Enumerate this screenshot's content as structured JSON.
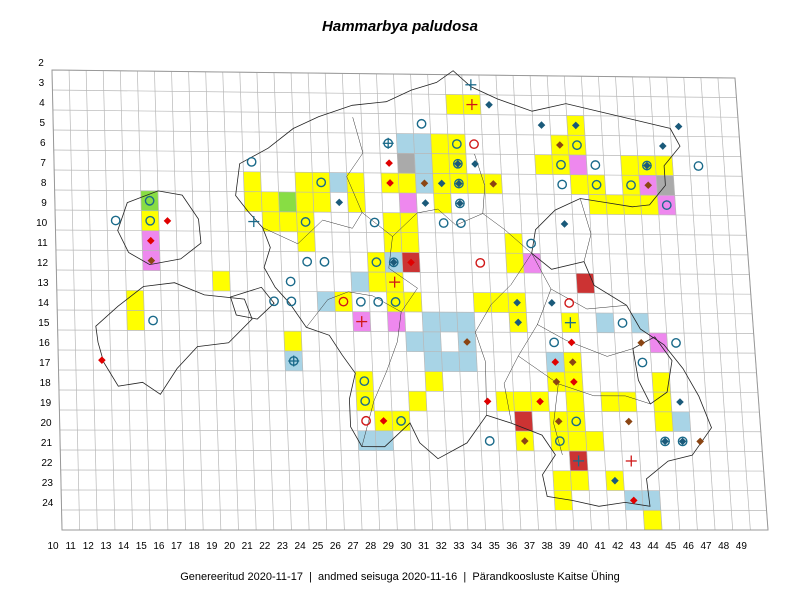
{
  "title": "Hammarbya paludosa",
  "footer": {
    "generated_label": "Genereeritud",
    "generated_date": "2020-11-17",
    "data_label": "andmed seisuga",
    "data_date": "2020-11-16",
    "organization": "Pärandkoosluste Kaitse Ühing",
    "separator": "|"
  },
  "grid": {
    "columns": [
      10,
      11,
      12,
      13,
      14,
      15,
      16,
      17,
      18,
      19,
      20,
      21,
      22,
      23,
      24,
      25,
      26,
      27,
      28,
      29,
      30,
      31,
      32,
      33,
      34,
      35,
      36,
      37,
      38,
      39,
      40,
      41,
      42,
      43,
      44,
      45,
      46,
      47,
      48,
      49
    ],
    "rows": [
      2,
      3,
      4,
      5,
      6,
      7,
      8,
      9,
      10,
      11,
      12,
      13,
      14,
      15,
      16,
      17,
      18,
      19,
      20,
      21,
      22,
      23,
      24
    ]
  },
  "colors": {
    "yellow": "#ffff00",
    "blue": "#a8d4e6",
    "pink": "#ee88ee",
    "green": "#88dd44",
    "gray": "#aaaaaa",
    "red": "#cc3333",
    "circle": "#1a6a8a",
    "cross": "#d01818",
    "diamond_brown": "#8b4513",
    "diamond_red": "#e00000",
    "diamond_blue": "#1a5a7a"
  },
  "cells": [
    {
      "c": 33,
      "r": 4,
      "f": "yellow"
    },
    {
      "c": 34,
      "r": 4,
      "f": "yellow"
    },
    {
      "c": 40,
      "r": 5,
      "f": "yellow"
    },
    {
      "c": 30,
      "r": 6,
      "f": "blue"
    },
    {
      "c": 31,
      "r": 6,
      "f": "blue"
    },
    {
      "c": 32,
      "r": 6,
      "f": "yellow"
    },
    {
      "c": 33,
      "r": 6,
      "f": "yellow"
    },
    {
      "c": 39,
      "r": 6,
      "f": "yellow"
    },
    {
      "c": 40,
      "r": 6,
      "f": "yellow"
    },
    {
      "c": 30,
      "r": 7,
      "f": "gray"
    },
    {
      "c": 31,
      "r": 7,
      "f": "blue"
    },
    {
      "c": 32,
      "r": 7,
      "f": "yellow"
    },
    {
      "c": 33,
      "r": 7,
      "f": "yellow"
    },
    {
      "c": 38,
      "r": 7,
      "f": "yellow"
    },
    {
      "c": 39,
      "r": 7,
      "f": "yellow"
    },
    {
      "c": 40,
      "r": 7,
      "f": "pink"
    },
    {
      "c": 43,
      "r": 7,
      "f": "yellow"
    },
    {
      "c": 44,
      "r": 7,
      "f": "yellow"
    },
    {
      "c": 45,
      "r": 7,
      "f": "yellow"
    },
    {
      "c": 21,
      "r": 8,
      "f": "yellow"
    },
    {
      "c": 24,
      "r": 8,
      "f": "yellow"
    },
    {
      "c": 25,
      "r": 8,
      "f": "yellow"
    },
    {
      "c": 26,
      "r": 8,
      "f": "blue"
    },
    {
      "c": 27,
      "r": 8,
      "f": "yellow"
    },
    {
      "c": 29,
      "r": 8,
      "f": "yellow"
    },
    {
      "c": 30,
      "r": 8,
      "f": "yellow"
    },
    {
      "c": 31,
      "r": 8,
      "f": "blue"
    },
    {
      "c": 32,
      "r": 8,
      "f": "yellow"
    },
    {
      "c": 33,
      "r": 8,
      "f": "yellow"
    },
    {
      "c": 34,
      "r": 8,
      "f": "yellow"
    },
    {
      "c": 35,
      "r": 8,
      "f": "yellow"
    },
    {
      "c": 40,
      "r": 8,
      "f": "yellow"
    },
    {
      "c": 41,
      "r": 8,
      "f": "yellow"
    },
    {
      "c": 43,
      "r": 8,
      "f": "yellow"
    },
    {
      "c": 44,
      "r": 8,
      "f": "pink"
    },
    {
      "c": 45,
      "r": 8,
      "f": "gray"
    },
    {
      "c": 15,
      "r": 9,
      "f": "green"
    },
    {
      "c": 21,
      "r": 9,
      "f": "yellow"
    },
    {
      "c": 22,
      "r": 9,
      "f": "yellow"
    },
    {
      "c": 23,
      "r": 9,
      "f": "green"
    },
    {
      "c": 24,
      "r": 9,
      "f": "yellow"
    },
    {
      "c": 25,
      "r": 9,
      "f": "yellow"
    },
    {
      "c": 27,
      "r": 9,
      "f": "yellow"
    },
    {
      "c": 30,
      "r": 9,
      "f": "pink"
    },
    {
      "c": 32,
      "r": 9,
      "f": "yellow"
    },
    {
      "c": 41,
      "r": 9,
      "f": "yellow"
    },
    {
      "c": 42,
      "r": 9,
      "f": "yellow"
    },
    {
      "c": 43,
      "r": 9,
      "f": "yellow"
    },
    {
      "c": 44,
      "r": 9,
      "f": "yellow"
    },
    {
      "c": 45,
      "r": 9,
      "f": "pink"
    },
    {
      "c": 15,
      "r": 10,
      "f": "yellow"
    },
    {
      "c": 22,
      "r": 10,
      "f": "yellow"
    },
    {
      "c": 23,
      "r": 10,
      "f": "yellow"
    },
    {
      "c": 24,
      "r": 10,
      "f": "yellow"
    },
    {
      "c": 29,
      "r": 10,
      "f": "yellow"
    },
    {
      "c": 30,
      "r": 10,
      "f": "yellow"
    },
    {
      "c": 15,
      "r": 11,
      "f": "pink"
    },
    {
      "c": 24,
      "r": 11,
      "f": "yellow"
    },
    {
      "c": 29,
      "r": 11,
      "f": "yellow"
    },
    {
      "c": 30,
      "r": 11,
      "f": "yellow"
    },
    {
      "c": 36,
      "r": 11,
      "f": "yellow"
    },
    {
      "c": 15,
      "r": 12,
      "f": "pink"
    },
    {
      "c": 28,
      "r": 12,
      "f": "yellow"
    },
    {
      "c": 29,
      "r": 12,
      "f": "blue"
    },
    {
      "c": 30,
      "r": 12,
      "f": "red"
    },
    {
      "c": 36,
      "r": 12,
      "f": "yellow"
    },
    {
      "c": 37,
      "r": 12,
      "f": "pink"
    },
    {
      "c": 19,
      "r": 13,
      "f": "yellow"
    },
    {
      "c": 27,
      "r": 13,
      "f": "blue"
    },
    {
      "c": 28,
      "r": 13,
      "f": "yellow"
    },
    {
      "c": 29,
      "r": 13,
      "f": "yellow"
    },
    {
      "c": 40,
      "r": 13,
      "f": "red"
    },
    {
      "c": 14,
      "r": 14,
      "f": "yellow"
    },
    {
      "c": 25,
      "r": 14,
      "f": "blue"
    },
    {
      "c": 26,
      "r": 14,
      "f": "yellow"
    },
    {
      "c": 29,
      "r": 14,
      "f": "yellow"
    },
    {
      "c": 30,
      "r": 14,
      "f": "yellow"
    },
    {
      "c": 34,
      "r": 14,
      "f": "yellow"
    },
    {
      "c": 35,
      "r": 14,
      "f": "yellow"
    },
    {
      "c": 36,
      "r": 14,
      "f": "yellow"
    },
    {
      "c": 14,
      "r": 15,
      "f": "yellow"
    },
    {
      "c": 27,
      "r": 15,
      "f": "pink"
    },
    {
      "c": 29,
      "r": 15,
      "f": "pink"
    },
    {
      "c": 31,
      "r": 15,
      "f": "blue"
    },
    {
      "c": 32,
      "r": 15,
      "f": "blue"
    },
    {
      "c": 33,
      "r": 15,
      "f": "blue"
    },
    {
      "c": 36,
      "r": 15,
      "f": "yellow"
    },
    {
      "c": 39,
      "r": 15,
      "f": "yellow"
    },
    {
      "c": 41,
      "r": 15,
      "f": "blue"
    },
    {
      "c": 43,
      "r": 15,
      "f": "blue"
    },
    {
      "c": 23,
      "r": 16,
      "f": "yellow"
    },
    {
      "c": 30,
      "r": 16,
      "f": "blue"
    },
    {
      "c": 31,
      "r": 16,
      "f": "blue"
    },
    {
      "c": 33,
      "r": 16,
      "f": "blue"
    },
    {
      "c": 44,
      "r": 16,
      "f": "pink"
    },
    {
      "c": 23,
      "r": 17,
      "f": "blue"
    },
    {
      "c": 31,
      "r": 17,
      "f": "blue"
    },
    {
      "c": 32,
      "r": 17,
      "f": "blue"
    },
    {
      "c": 33,
      "r": 17,
      "f": "blue"
    },
    {
      "c": 38,
      "r": 17,
      "f": "blue"
    },
    {
      "c": 39,
      "r": 17,
      "f": "yellow"
    },
    {
      "c": 27,
      "r": 18,
      "f": "yellow"
    },
    {
      "c": 31,
      "r": 18,
      "f": "yellow"
    },
    {
      "c": 38,
      "r": 18,
      "f": "yellow"
    },
    {
      "c": 39,
      "r": 18,
      "f": "yellow"
    },
    {
      "c": 44,
      "r": 18,
      "f": "yellow"
    },
    {
      "c": 27,
      "r": 19,
      "f": "yellow"
    },
    {
      "c": 30,
      "r": 19,
      "f": "yellow"
    },
    {
      "c": 35,
      "r": 19,
      "f": "yellow"
    },
    {
      "c": 36,
      "r": 19,
      "f": "yellow"
    },
    {
      "c": 37,
      "r": 19,
      "f": "yellow"
    },
    {
      "c": 39,
      "r": 19,
      "f": "yellow"
    },
    {
      "c": 41,
      "r": 19,
      "f": "yellow"
    },
    {
      "c": 42,
      "r": 19,
      "f": "yellow"
    },
    {
      "c": 44,
      "r": 19,
      "f": "yellow"
    },
    {
      "c": 28,
      "r": 20,
      "f": "yellow"
    },
    {
      "c": 29,
      "r": 20,
      "f": "yellow"
    },
    {
      "c": 36,
      "r": 20,
      "f": "red"
    },
    {
      "c": 38,
      "r": 20,
      "f": "yellow"
    },
    {
      "c": 39,
      "r": 20,
      "f": "yellow"
    },
    {
      "c": 44,
      "r": 20,
      "f": "yellow"
    },
    {
      "c": 45,
      "r": 20,
      "f": "blue"
    },
    {
      "c": 27,
      "r": 21,
      "f": "blue"
    },
    {
      "c": 28,
      "r": 21,
      "f": "blue"
    },
    {
      "c": 36,
      "r": 21,
      "f": "yellow"
    },
    {
      "c": 38,
      "r": 21,
      "f": "yellow"
    },
    {
      "c": 39,
      "r": 21,
      "f": "yellow"
    },
    {
      "c": 40,
      "r": 21,
      "f": "yellow"
    },
    {
      "c": 39,
      "r": 22,
      "f": "red"
    },
    {
      "c": 38,
      "r": 23,
      "f": "yellow"
    },
    {
      "c": 39,
      "r": 23,
      "f": "yellow"
    },
    {
      "c": 41,
      "r": 23,
      "f": "yellow"
    },
    {
      "c": 38,
      "r": 24,
      "f": "yellow"
    },
    {
      "c": 42,
      "r": 24,
      "f": "blue"
    },
    {
      "c": 43,
      "r": 24,
      "f": "blue"
    },
    {
      "c": 43,
      "r": 25,
      "f": "yellow"
    }
  ],
  "markers": [
    {
      "c": 34,
      "r": 3,
      "t": "cross",
      "color": "circle"
    },
    {
      "c": 34,
      "r": 4,
      "t": "cross",
      "color": "cross"
    },
    {
      "c": 35,
      "r": 4,
      "t": "diamond",
      "color": "diamond_blue"
    },
    {
      "c": 40,
      "r": 5,
      "t": "diamond",
      "color": "diamond_blue"
    },
    {
      "c": 31,
      "r": 5,
      "t": "circle",
      "color": "circle"
    },
    {
      "c": 38,
      "r": 5,
      "t": "diamond",
      "color": "diamond_blue"
    },
    {
      "c": 46,
      "r": 5,
      "t": "diamond",
      "color": "diamond_blue"
    },
    {
      "c": 45,
      "r": 6,
      "t": "diamond",
      "color": "diamond_blue"
    },
    {
      "c": 33,
      "r": 6,
      "t": "circle",
      "color": "circle"
    },
    {
      "c": 34,
      "r": 6,
      "t": "circle",
      "color": "cross"
    },
    {
      "c": 39,
      "r": 6,
      "t": "diamond",
      "color": "diamond_brown"
    },
    {
      "c": 40,
      "r": 6,
      "t": "circle",
      "color": "circle"
    },
    {
      "c": 29,
      "r": 6,
      "t": "circle",
      "color": "circle"
    },
    {
      "c": 29,
      "r": 6,
      "t": "cross",
      "color": "circle"
    },
    {
      "c": 34,
      "r": 7,
      "t": "diamond",
      "color": "diamond_blue"
    },
    {
      "c": 33,
      "r": 7,
      "t": "circle",
      "color": "circle"
    },
    {
      "c": 33,
      "r": 7,
      "t": "diamond",
      "color": "diamond_blue"
    },
    {
      "c": 39,
      "r": 7,
      "t": "circle",
      "color": "circle"
    },
    {
      "c": 41,
      "r": 7,
      "t": "circle",
      "color": "circle"
    },
    {
      "c": 44,
      "r": 7,
      "t": "circle",
      "color": "circle"
    },
    {
      "c": 44,
      "r": 7,
      "t": "diamond",
      "color": "diamond_blue"
    },
    {
      "c": 47,
      "r": 7,
      "t": "circle",
      "color": "circle"
    },
    {
      "c": 21,
      "r": 7,
      "t": "circle",
      "color": "circle"
    },
    {
      "c": 29,
      "r": 7,
      "t": "diamond",
      "color": "diamond_red"
    },
    {
      "c": 25,
      "r": 8,
      "t": "circle",
      "color": "circle"
    },
    {
      "c": 29,
      "r": 8,
      "t": "diamond",
      "color": "diamond_red"
    },
    {
      "c": 31,
      "r": 8,
      "t": "diamond",
      "color": "diamond_brown"
    },
    {
      "c": 32,
      "r": 8,
      "t": "diamond",
      "color": "diamond_blue"
    },
    {
      "c": 33,
      "r": 8,
      "t": "circle",
      "color": "circle"
    },
    {
      "c": 33,
      "r": 8,
      "t": "diamond",
      "color": "diamond_blue"
    },
    {
      "c": 35,
      "r": 8,
      "t": "diamond",
      "color": "diamond_brown"
    },
    {
      "c": 39,
      "r": 8,
      "t": "circle",
      "color": "circle"
    },
    {
      "c": 41,
      "r": 8,
      "t": "circle",
      "color": "circle"
    },
    {
      "c": 43,
      "r": 8,
      "t": "circle",
      "color": "circle"
    },
    {
      "c": 44,
      "r": 8,
      "t": "diamond",
      "color": "diamond_brown"
    },
    {
      "c": 45,
      "r": 9,
      "t": "circle",
      "color": "circle"
    },
    {
      "c": 15,
      "r": 9,
      "t": "circle",
      "color": "circle"
    },
    {
      "c": 26,
      "r": 9,
      "t": "diamond",
      "color": "diamond_blue"
    },
    {
      "c": 31,
      "r": 9,
      "t": "diamond",
      "color": "diamond_blue"
    },
    {
      "c": 33,
      "r": 9,
      "t": "circle",
      "color": "circle"
    },
    {
      "c": 33,
      "r": 9,
      "t": "diamond",
      "color": "diamond_blue"
    },
    {
      "c": 13,
      "r": 10,
      "t": "circle",
      "color": "circle"
    },
    {
      "c": 15,
      "r": 10,
      "t": "circle",
      "color": "circle"
    },
    {
      "c": 16,
      "r": 10,
      "t": "diamond",
      "color": "diamond_red"
    },
    {
      "c": 21,
      "r": 10,
      "t": "cross",
      "color": "circle"
    },
    {
      "c": 24,
      "r": 10,
      "t": "circle",
      "color": "circle"
    },
    {
      "c": 28,
      "r": 10,
      "t": "circle",
      "color": "circle"
    },
    {
      "c": 32,
      "r": 10,
      "t": "circle",
      "color": "circle"
    },
    {
      "c": 33,
      "r": 10,
      "t": "circle",
      "color": "circle"
    },
    {
      "c": 39,
      "r": 10,
      "t": "diamond",
      "color": "diamond_blue"
    },
    {
      "c": 15,
      "r": 11,
      "t": "diamond",
      "color": "diamond_red"
    },
    {
      "c": 37,
      "r": 11,
      "t": "circle",
      "color": "circle"
    },
    {
      "c": 15,
      "r": 12,
      "t": "diamond",
      "color": "diamond_brown"
    },
    {
      "c": 24,
      "r": 12,
      "t": "circle",
      "color": "circle"
    },
    {
      "c": 25,
      "r": 12,
      "t": "circle",
      "color": "circle"
    },
    {
      "c": 28,
      "r": 12,
      "t": "circle",
      "color": "circle"
    },
    {
      "c": 29,
      "r": 12,
      "t": "circle",
      "color": "circle"
    },
    {
      "c": 29,
      "r": 12,
      "t": "diamond",
      "color": "diamond_blue"
    },
    {
      "c": 30,
      "r": 12,
      "t": "diamond",
      "color": "diamond_red"
    },
    {
      "c": 34,
      "r": 12,
      "t": "circle",
      "color": "cross"
    },
    {
      "c": 29,
      "r": 13,
      "t": "cross",
      "color": "cross"
    },
    {
      "c": 23,
      "r": 13,
      "t": "circle",
      "color": "circle"
    },
    {
      "c": 22,
      "r": 14,
      "t": "circle",
      "color": "circle"
    },
    {
      "c": 23,
      "r": 14,
      "t": "circle",
      "color": "circle"
    },
    {
      "c": 26,
      "r": 14,
      "t": "circle",
      "color": "cross"
    },
    {
      "c": 27,
      "r": 14,
      "t": "circle",
      "color": "circle"
    },
    {
      "c": 28,
      "r": 14,
      "t": "circle",
      "color": "circle"
    },
    {
      "c": 29,
      "r": 14,
      "t": "circle",
      "color": "circle"
    },
    {
      "c": 36,
      "r": 14,
      "t": "diamond",
      "color": "diamond_blue"
    },
    {
      "c": 38,
      "r": 14,
      "t": "diamond",
      "color": "diamond_blue"
    },
    {
      "c": 39,
      "r": 14,
      "t": "circle",
      "color": "cross"
    },
    {
      "c": 15,
      "r": 15,
      "t": "circle",
      "color": "circle"
    },
    {
      "c": 27,
      "r": 15,
      "t": "cross",
      "color": "cross"
    },
    {
      "c": 36,
      "r": 15,
      "t": "diamond",
      "color": "diamond_blue"
    },
    {
      "c": 39,
      "r": 15,
      "t": "cross",
      "color": "circle"
    },
    {
      "c": 42,
      "r": 15,
      "t": "circle",
      "color": "circle"
    },
    {
      "c": 38,
      "r": 16,
      "t": "circle",
      "color": "circle"
    },
    {
      "c": 39,
      "r": 16,
      "t": "diamond",
      "color": "diamond_red"
    },
    {
      "c": 33,
      "r": 16,
      "t": "diamond",
      "color": "diamond_brown"
    },
    {
      "c": 43,
      "r": 16,
      "t": "diamond",
      "color": "diamond_brown"
    },
    {
      "c": 45,
      "r": 16,
      "t": "circle",
      "color": "circle"
    },
    {
      "c": 23,
      "r": 17,
      "t": "circle",
      "color": "circle"
    },
    {
      "c": 23,
      "r": 17,
      "t": "cross",
      "color": "circle"
    },
    {
      "c": 38,
      "r": 17,
      "t": "diamond",
      "color": "diamond_red"
    },
    {
      "c": 39,
      "r": 17,
      "t": "diamond",
      "color": "diamond_brown"
    },
    {
      "c": 43,
      "r": 17,
      "t": "circle",
      "color": "circle"
    },
    {
      "c": 12,
      "r": 17,
      "t": "diamond",
      "color": "diamond_red"
    },
    {
      "c": 27,
      "r": 18,
      "t": "circle",
      "color": "circle"
    },
    {
      "c": 38,
      "r": 18,
      "t": "diamond",
      "color": "diamond_brown"
    },
    {
      "c": 39,
      "r": 18,
      "t": "diamond",
      "color": "diamond_red"
    },
    {
      "c": 27,
      "r": 19,
      "t": "circle",
      "color": "circle"
    },
    {
      "c": 34,
      "r": 19,
      "t": "diamond",
      "color": "diamond_red"
    },
    {
      "c": 37,
      "r": 19,
      "t": "diamond",
      "color": "diamond_red"
    },
    {
      "c": 45,
      "r": 19,
      "t": "diamond",
      "color": "diamond_blue"
    },
    {
      "c": 27,
      "r": 20,
      "t": "circle",
      "color": "cross"
    },
    {
      "c": 28,
      "r": 20,
      "t": "diamond",
      "color": "diamond_red"
    },
    {
      "c": 29,
      "r": 20,
      "t": "circle",
      "color": "circle"
    },
    {
      "c": 38,
      "r": 20,
      "t": "diamond",
      "color": "diamond_brown"
    },
    {
      "c": 39,
      "r": 20,
      "t": "circle",
      "color": "circle"
    },
    {
      "c": 42,
      "r": 20,
      "t": "diamond",
      "color": "diamond_brown"
    },
    {
      "c": 36,
      "r": 21,
      "t": "diamond",
      "color": "diamond_brown"
    },
    {
      "c": 34,
      "r": 21,
      "t": "circle",
      "color": "circle"
    },
    {
      "c": 38,
      "r": 21,
      "t": "circle",
      "color": "circle"
    },
    {
      "c": 44,
      "r": 21,
      "t": "circle",
      "color": "circle"
    },
    {
      "c": 44,
      "r": 21,
      "t": "diamond",
      "color": "diamond_blue"
    },
    {
      "c": 45,
      "r": 21,
      "t": "circle",
      "color": "circle"
    },
    {
      "c": 45,
      "r": 21,
      "t": "diamond",
      "color": "diamond_blue"
    },
    {
      "c": 46,
      "r": 21,
      "t": "diamond",
      "color": "diamond_brown"
    },
    {
      "c": 39,
      "r": 22,
      "t": "cross",
      "color": "circle"
    },
    {
      "c": 42,
      "r": 22,
      "t": "cross",
      "color": "cross"
    },
    {
      "c": 41,
      "r": 23,
      "t": "diamond",
      "color": "diamond_blue"
    },
    {
      "c": 42,
      "r": 24,
      "t": "diamond",
      "color": "diamond_red"
    }
  ]
}
